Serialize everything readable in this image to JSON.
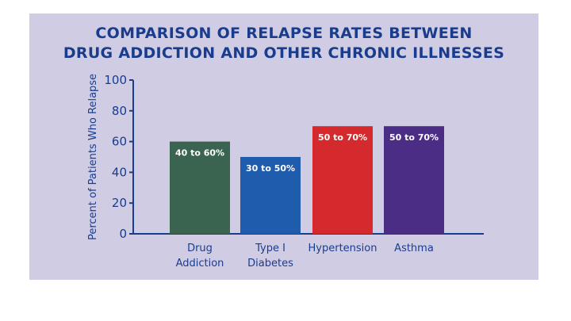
{
  "colors": {
    "background": "#d0cce4",
    "text": "#1a3c8c",
    "axis": "#1a3c8c"
  },
  "chart_data": {
    "type": "bar",
    "title": "COMPARISON OF RELAPSE RATES BETWEEN DRUG ADDICTION AND OTHER CHRONIC ILLNESSES",
    "title_lines": [
      "COMPARISON OF RELAPSE RATES BETWEEN",
      "DRUG ADDICTION AND OTHER CHRONIC ILLNESSES"
    ],
    "ylabel": "Percent of Patients Who Relapse",
    "xlabel": "",
    "ylim": [
      0,
      100
    ],
    "yticks": [
      0,
      20,
      40,
      60,
      80,
      100
    ],
    "grid": false,
    "categories": [
      {
        "name": "Drug Addiction",
        "lines": [
          "Drug",
          "Addiction"
        ]
      },
      {
        "name": "Type I Diabetes",
        "lines": [
          "Type I",
          "Diabetes"
        ]
      },
      {
        "name": "Hypertension",
        "lines": [
          "Hypertension"
        ]
      },
      {
        "name": "Asthma",
        "lines": [
          "Asthma"
        ]
      }
    ],
    "values": [
      60,
      50,
      70,
      70
    ],
    "bar_labels": [
      "40 to 60%",
      "30 to 50%",
      "50 to 70%",
      "50 to 70%"
    ],
    "bar_colors": [
      "#3b6450",
      "#1f5cae",
      "#d42a2e",
      "#4b2d85"
    ]
  }
}
